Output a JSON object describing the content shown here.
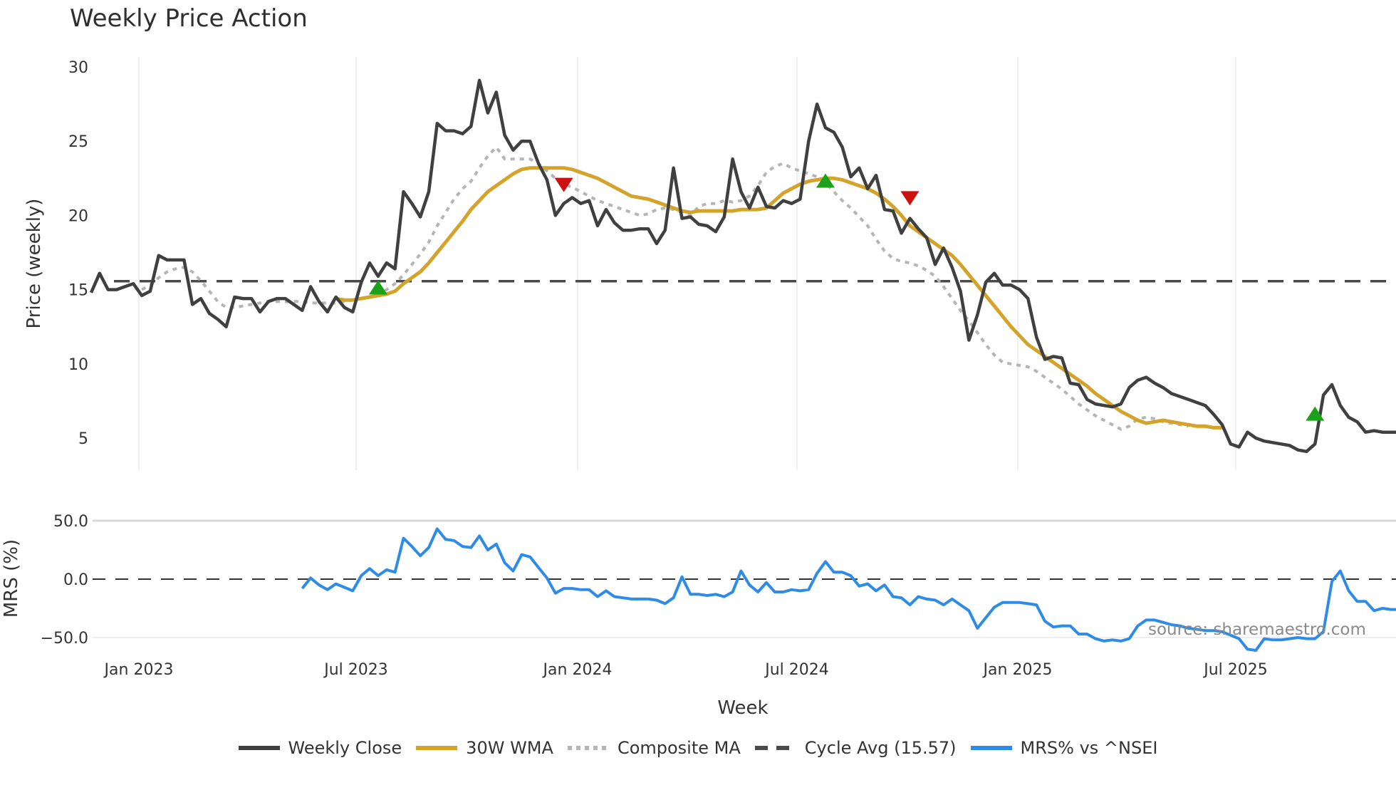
{
  "title": "Weekly Price Action",
  "source_label": "source: sharemaestro.com",
  "colors": {
    "weekly_close": "#404040",
    "wma": "#d4a32a",
    "composite": "#b5b5b5",
    "cycle_avg": "#4a4a4a",
    "mrs": "#2e8be6",
    "buy_marker": "#1aa21a",
    "sell_marker": "#cc1111",
    "grid": "#e8eaee"
  },
  "legend": [
    {
      "label": "Weekly Close",
      "style": "solid",
      "color": "#404040"
    },
    {
      "label": "30W WMA",
      "style": "solid",
      "color": "#d4a32a"
    },
    {
      "label": "Composite MA",
      "style": "dotted",
      "color": "#b5b5b5"
    },
    {
      "label": "Cycle Avg (15.57)",
      "style": "dashed",
      "color": "#4a4a4a"
    },
    {
      "label": "MRS% vs ^NSEI",
      "style": "solid",
      "color": "#2e8be6"
    }
  ],
  "chart_data": [
    {
      "type": "line",
      "title": "Weekly Price Action",
      "xlabel": "Week",
      "ylabel": "Price (weekly)",
      "ylim": [
        3,
        30.5
      ],
      "yticks": [
        5,
        10,
        15,
        20,
        25,
        30
      ],
      "xticks": [
        "Jan 2023",
        "Jul 2023",
        "Jan 2024",
        "Jul 2024",
        "Jan 2025",
        "Jul 2025"
      ],
      "x_start_week_offset": -6,
      "grid": true,
      "legend_position": "bottom",
      "cycle_avg": 15.57,
      "series": [
        {
          "name": "Weekly Close",
          "start": 0,
          "values": [
            14.8,
            16.1,
            15.0,
            15.0,
            15.2,
            15.4,
            14.6,
            14.9,
            17.3,
            17.0,
            17.0,
            17.0,
            14.0,
            14.4,
            13.4,
            13.0,
            12.5,
            14.5,
            14.4,
            14.4,
            13.5,
            14.2,
            14.4,
            14.4,
            14.0,
            13.6,
            15.2,
            14.2,
            13.5,
            14.5,
            13.8,
            13.5,
            15.5,
            16.8,
            15.9,
            16.8,
            16.4,
            21.6,
            20.8,
            19.9,
            21.6,
            26.2,
            25.7,
            25.7,
            25.5,
            26.0,
            29.1,
            26.9,
            28.3,
            25.4,
            24.4,
            25.0,
            25.0,
            23.5,
            22.4,
            20.0,
            20.8,
            21.2,
            20.8,
            21.0,
            19.3,
            20.4,
            19.5,
            19.0,
            19.0,
            19.1,
            19.1,
            18.1,
            19.0,
            23.2,
            19.8,
            19.9,
            19.4,
            19.3,
            18.9,
            19.9,
            23.8,
            21.6,
            20.5,
            21.9,
            20.6,
            20.5,
            21.0,
            20.8,
            21.1,
            25.0,
            27.5,
            25.9,
            25.6,
            24.6,
            22.6,
            23.2,
            21.8,
            22.7,
            20.4,
            20.3,
            18.8,
            19.8,
            19.1,
            18.5,
            16.7,
            17.8,
            16.5,
            14.9,
            11.6,
            13.3,
            15.5,
            16.1,
            15.3,
            15.3,
            15.0,
            14.4,
            11.8,
            10.3,
            10.5,
            10.4,
            8.7,
            8.6,
            7.6,
            7.3,
            7.2,
            7.1,
            7.3,
            8.4,
            8.9,
            9.1,
            8.7,
            8.4,
            8.0,
            7.8,
            7.6,
            7.4,
            7.2,
            6.6,
            5.9,
            4.6,
            4.4,
            5.4,
            5.0,
            4.8,
            4.7,
            4.6,
            4.5,
            4.2,
            4.1,
            4.6,
            7.9,
            8.6,
            7.2,
            6.4,
            6.1,
            5.4,
            5.5,
            5.4,
            5.4,
            5.4,
            5.6
          ]
        },
        {
          "name": "30W WMA",
          "start": 29,
          "values": [
            14.4,
            14.3,
            14.3,
            14.4,
            14.5,
            14.6,
            14.7,
            14.9,
            15.4,
            15.8,
            16.2,
            16.8,
            17.5,
            18.2,
            18.9,
            19.6,
            20.4,
            21.0,
            21.6,
            22.0,
            22.4,
            22.8,
            23.1,
            23.2,
            23.2,
            23.2,
            23.2,
            23.2,
            23.1,
            22.9,
            22.7,
            22.5,
            22.2,
            21.9,
            21.6,
            21.3,
            21.2,
            21.1,
            20.9,
            20.7,
            20.5,
            20.3,
            20.2,
            20.3,
            20.3,
            20.3,
            20.3,
            20.3,
            20.4,
            20.4,
            20.4,
            20.5,
            21.0,
            21.5,
            21.8,
            22.1,
            22.3,
            22.4,
            22.5,
            22.5,
            22.4,
            22.2,
            22.0,
            21.8,
            21.5,
            21.1,
            20.6,
            20.0,
            19.3,
            18.9,
            18.5,
            18.1,
            17.7,
            17.3,
            16.7,
            16.0,
            15.3,
            14.6,
            13.9,
            13.2,
            12.5,
            11.9,
            11.3,
            10.9,
            10.5,
            10.1,
            9.7,
            9.3,
            8.9,
            8.5,
            8.0,
            7.6,
            7.2,
            6.8,
            6.5,
            6.2,
            6.0,
            6.1,
            6.2,
            6.1,
            6.0,
            5.9,
            5.8,
            5.8,
            5.7,
            5.7
          ]
        },
        {
          "name": "Composite MA",
          "start": 6,
          "values": [
            15.0,
            15.3,
            15.8,
            16.2,
            16.4,
            16.5,
            16.2,
            15.6,
            14.9,
            14.2,
            13.8,
            13.8,
            13.9,
            14.0,
            14.1,
            14.2,
            14.2,
            14.2,
            14.2,
            14.2,
            14.1,
            14.1,
            14.1,
            14.1,
            14.2,
            14.3,
            14.4,
            14.5,
            14.7,
            15.0,
            15.4,
            16.0,
            16.7,
            17.4,
            18.2,
            19.3,
            20.2,
            21.1,
            21.8,
            22.3,
            23.2,
            24.0,
            24.6,
            23.8,
            23.8,
            23.8,
            23.8,
            23.5,
            23.0,
            22.5,
            22.1,
            21.9,
            21.6,
            21.3,
            21.0,
            20.8,
            20.6,
            20.4,
            20.2,
            20.0,
            20.1,
            20.4,
            20.5,
            20.4,
            20.2,
            20.0,
            20.6,
            20.8,
            20.8,
            21.0,
            20.9,
            21.0,
            21.3,
            22.0,
            22.9,
            23.3,
            23.5,
            23.2,
            23.0,
            22.8,
            22.6,
            22.2,
            21.6,
            21.0,
            20.5,
            19.9,
            19.3,
            18.4,
            17.6,
            17.1,
            16.9,
            16.8,
            16.6,
            16.3,
            15.9,
            15.2,
            14.4,
            13.6,
            12.9,
            12.1,
            11.3,
            10.6,
            10.1,
            10.0,
            9.9,
            9.8,
            9.5,
            9.1,
            8.7,
            8.3,
            7.8,
            7.3,
            6.9,
            6.5,
            6.2,
            5.9,
            5.6,
            5.8,
            6.3,
            6.4,
            6.3,
            6.1,
            6.0,
            5.9,
            5.8
          ]
        },
        {
          "name": "Cycle Avg (15.57)",
          "constant": 15.57
        }
      ],
      "markers": [
        {
          "type": "buy",
          "week": 34,
          "value": 15.1
        },
        {
          "type": "sell",
          "week": 56,
          "value": 22.1
        },
        {
          "type": "buy",
          "week": 87,
          "value": 22.3
        },
        {
          "type": "sell",
          "week": 97,
          "value": 21.2
        },
        {
          "type": "buy",
          "week": 145,
          "value": 6.6
        }
      ]
    },
    {
      "type": "line",
      "title": "",
      "xlabel": "Week",
      "ylabel": "MRS (%)",
      "ylim": [
        -65,
        55
      ],
      "yticks": [
        50.0,
        0.0,
        -50.0
      ],
      "ytick_labels": [
        "50.0",
        "0.0",
        "−50.0"
      ],
      "reference_line": 0,
      "series": [
        {
          "name": "MRS% vs ^NSEI",
          "start": 25,
          "values": [
            -8,
            1,
            -5,
            -9,
            -4,
            -7,
            -10,
            3,
            9,
            3,
            8,
            6,
            35,
            28,
            20,
            27,
            43,
            34,
            33,
            28,
            27,
            37,
            25,
            30,
            14,
            7,
            21,
            19,
            10,
            1,
            -12,
            -8,
            -8,
            -9,
            -9,
            -15,
            -10,
            -15,
            -16,
            -17,
            -17,
            -17,
            -18,
            -21,
            -16,
            2,
            -13,
            -13,
            -14,
            -13,
            -15,
            -11,
            7,
            -5,
            -11,
            -3,
            -11,
            -11,
            -9,
            -10,
            -9,
            5,
            15,
            6,
            6,
            3,
            -6,
            -4,
            -10,
            -5,
            -15,
            -16,
            -22,
            -15,
            -17,
            -18,
            -22,
            -17,
            -22,
            -27,
            -42,
            -33,
            -24,
            -20,
            -20,
            -20,
            -21,
            -22,
            -36,
            -41,
            -40,
            -40,
            -47,
            -47,
            -51,
            -53,
            -52,
            -53,
            -51,
            -40,
            -35,
            -35,
            -37,
            -39,
            -40,
            -42,
            -43,
            -44,
            -44,
            -45,
            -48,
            -51,
            -60,
            -61,
            -51,
            -52,
            -52,
            -51,
            -50,
            -51,
            -51,
            -45,
            -2,
            7,
            -10,
            -19,
            -19,
            -27,
            -25,
            -26,
            -26,
            -24,
            -21,
            -17
          ]
        }
      ]
    }
  ],
  "axes": {
    "price_ylabel": "Price (weekly)",
    "mrs_ylabel": "MRS (%)",
    "xlabel": "Week",
    "price_yticks": [
      "5",
      "10",
      "15",
      "20",
      "25",
      "30"
    ],
    "mrs_yticks": [
      "50.0",
      "0.0",
      "−50.0"
    ],
    "xticks": [
      "Jan 2023",
      "Jul 2023",
      "Jan 2024",
      "Jul 2024",
      "Jan 2025",
      "Jul 2025"
    ]
  }
}
